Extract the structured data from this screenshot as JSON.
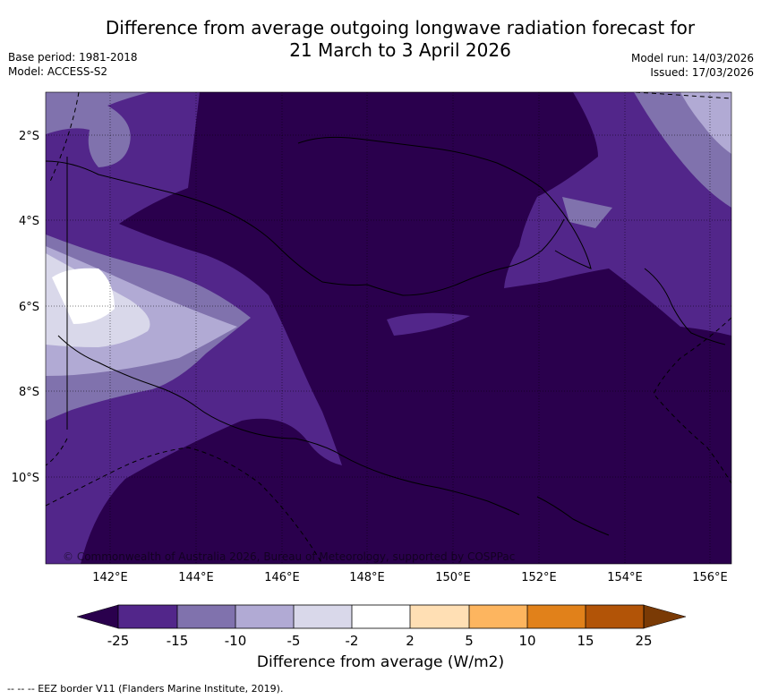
{
  "header": {
    "title_line1": "Difference from average outgoing longwave radiation forecast for",
    "title_line2": "21 March to 3 April 2026",
    "base_period": "Base period: 1981-2018",
    "model": "Model: ACCESS-S2",
    "model_run": "Model run: 14/03/2026",
    "issued": "Issued: 17/03/2026"
  },
  "map": {
    "lat_labels": [
      "2°S",
      "4°S",
      "6°S",
      "8°S",
      "10°S"
    ],
    "lon_labels": [
      "142°E",
      "144°E",
      "146°E",
      "148°E",
      "150°E",
      "152°E",
      "154°E",
      "156°E"
    ],
    "attribution": "© Commonwealth of Australia 2026, Bureau of Meteorology, supported by COSPPac",
    "colors": {
      "lt_m25": "#2a004d",
      "m25_m15": "#52268a",
      "m15_m10": "#8072ad",
      "m10_m5": "#b1aad4",
      "m5_m2": "#d9d8ea",
      "m2_2": "#ffffff",
      "p2_5": "#ffdfb4",
      "p5_10": "#fdb55f",
      "p10_15": "#e1811a",
      "p15_25": "#b25407",
      "gt_25": "#7a3a05"
    }
  },
  "colorbar": {
    "ticks": [
      "-25",
      "-15",
      "-10",
      "-5",
      "-2",
      "2",
      "5",
      "10",
      "15",
      "25"
    ],
    "title": "Difference from average (W/m2)"
  },
  "footer": {
    "legend_line": "--  --  -- EEZ border V11 (Flanders Marine Institute, 2019)."
  }
}
